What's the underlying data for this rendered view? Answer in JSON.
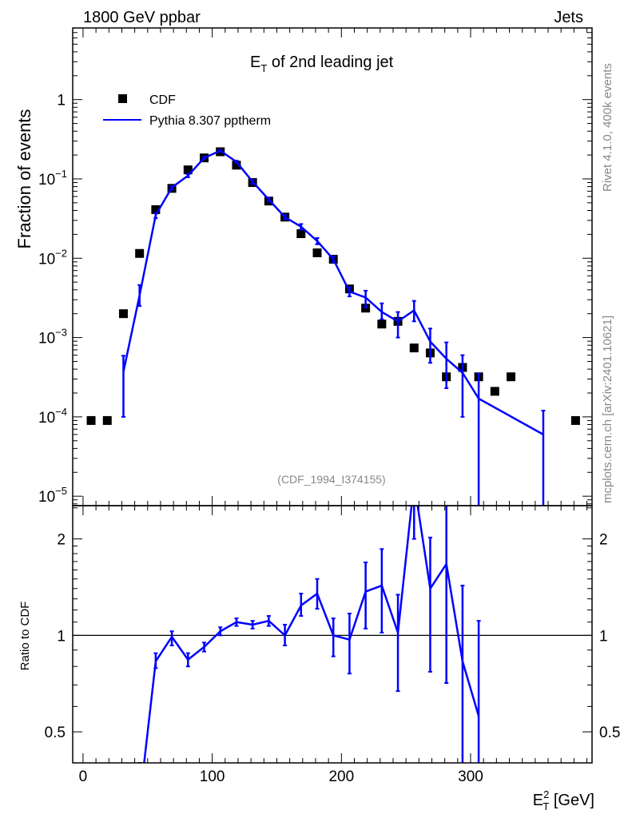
{
  "chart_data": {
    "type": "line",
    "header_left": "1800 GeV ppbar",
    "header_right": "Jets",
    "title_main": "E",
    "title_sub": "T",
    "title_rest": " of 2nd leading jet",
    "ylabel": "Fraction of events",
    "ratio_ylabel": "Ratio to CDF",
    "xlabel_main": "E",
    "xlabel_sup": "2",
    "xlabel_sub": "T",
    "xlabel_rest": " [GeV]",
    "annotation": "(CDF_1994_I374155)",
    "side_label_top": "Rivet 4.1.0,  400k events",
    "side_label_bottom": "mcplots.cern.ch [arXiv:2401.10621]",
    "xlim": [
      -8,
      394
    ],
    "x_ticks": [
      0,
      100,
      200,
      300
    ],
    "x_tick_labels": [
      "0",
      "100",
      "200",
      "300"
    ],
    "main_ylim": [
      7.6e-06,
      8
    ],
    "main_y_ticks": [
      1,
      0.1,
      0.01,
      0.001,
      0.0001,
      1e-05
    ],
    "main_y_tick_labels": [
      {
        "base": "1",
        "exp": ""
      },
      {
        "base": "10",
        "exp": "−1"
      },
      {
        "base": "10",
        "exp": "−2"
      },
      {
        "base": "10",
        "exp": "−3"
      },
      {
        "base": "10",
        "exp": "−4"
      },
      {
        "base": "10",
        "exp": "−5"
      }
    ],
    "ratio_ylim": [
      0.4,
      2.54
    ],
    "ratio_y_ticks": [
      0.5,
      1,
      2
    ],
    "ratio_y_tick_labels": [
      "0.5",
      "1",
      "2"
    ],
    "legend_position": "top-left",
    "series": [
      {
        "name": "CDF",
        "style": "markers",
        "color": "#000000",
        "x": [
          6.25,
          18.75,
          31.25,
          43.75,
          56.25,
          68.75,
          81.25,
          93.75,
          106.25,
          118.75,
          131.25,
          143.75,
          156.25,
          168.75,
          181.25,
          193.75,
          206.25,
          218.75,
          231.25,
          243.75,
          256.25,
          268.75,
          281.25,
          293.75,
          306.25,
          318.75,
          331.25,
          381.25
        ],
        "y": [
          9e-05,
          9e-05,
          0.002,
          0.0115,
          0.041,
          0.076,
          0.13,
          0.184,
          0.22,
          0.149,
          0.09,
          0.0526,
          0.033,
          0.0204,
          0.0117,
          0.0097,
          0.0041,
          0.00235,
          0.00148,
          0.0016,
          0.00074,
          0.00064,
          0.00032,
          0.00042,
          0.00032,
          0.00021,
          0.00032,
          9e-05
        ]
      },
      {
        "name": "Pythia 8.307 pptherm",
        "style": "line",
        "color": "#0000ff",
        "x": [
          31.25,
          43.75,
          56.25,
          68.75,
          81.25,
          93.75,
          106.25,
          118.75,
          131.25,
          143.75,
          156.25,
          168.75,
          181.25,
          193.75,
          206.25,
          218.75,
          231.25,
          243.75,
          256.25,
          268.75,
          281.25,
          293.75,
          306.25,
          356.25
        ],
        "y": [
          0.00037,
          0.0034,
          0.035,
          0.078,
          0.11,
          0.184,
          0.227,
          0.164,
          0.092,
          0.055,
          0.033,
          0.025,
          0.0165,
          0.0097,
          0.0038,
          0.0032,
          0.0021,
          0.0016,
          0.0022,
          0.00089,
          0.00054,
          0.00036,
          0.00017,
          6e-05
        ],
        "y_upper": [
          0.00059,
          0.0046,
          0.037,
          0.081,
          0.115,
          0.19,
          0.233,
          0.17,
          0.097,
          0.058,
          0.035,
          0.027,
          0.018,
          0.0105,
          0.0043,
          0.0039,
          0.0027,
          0.0021,
          0.0029,
          0.0013,
          0.00087,
          0.0006,
          0.00035,
          0.00012
        ],
        "y_lower": [
          0.0001,
          0.0025,
          0.032,
          0.074,
          0.105,
          0.178,
          0.221,
          0.158,
          0.087,
          0.052,
          0.031,
          0.023,
          0.015,
          0.0089,
          0.0033,
          0.0024,
          0.0017,
          0.001,
          0.0016,
          0.00048,
          0.00023,
          0.0001,
          0,
          0
        ]
      }
    ],
    "ratio_series": {
      "name": "Pythia 8.307 pptherm / CDF",
      "color": "#0000ff",
      "x": [
        43.75,
        56.25,
        68.75,
        81.25,
        93.75,
        106.25,
        118.75,
        131.25,
        143.75,
        156.25,
        168.75,
        181.25,
        193.75,
        206.25,
        218.75,
        231.25,
        243.75,
        256.25,
        268.75,
        281.25,
        293.75,
        306.25
      ],
      "y": [
        0.3,
        0.83,
        0.99,
        0.84,
        0.92,
        1.03,
        1.1,
        1.08,
        1.11,
        1.0,
        1.24,
        1.35,
        1.0,
        0.97,
        1.37,
        1.43,
        1.02,
        3.0,
        1.4,
        1.67,
        0.83,
        0.56
      ],
      "y_upper": [
        0.4,
        0.88,
        1.03,
        0.88,
        0.95,
        1.06,
        1.13,
        1.11,
        1.15,
        1.08,
        1.35,
        1.5,
        1.13,
        1.17,
        1.69,
        1.86,
        1.34,
        4.5,
        2.02,
        3.0,
        1.43,
        1.11
      ],
      "y_lower": [
        0.2,
        0.79,
        0.93,
        0.8,
        0.89,
        1.0,
        1.07,
        1.05,
        1.07,
        0.93,
        1.15,
        1.21,
        0.86,
        0.76,
        1.05,
        1.02,
        0.67,
        2.0,
        0.77,
        0.71,
        0.1,
        0.1
      ]
    }
  }
}
